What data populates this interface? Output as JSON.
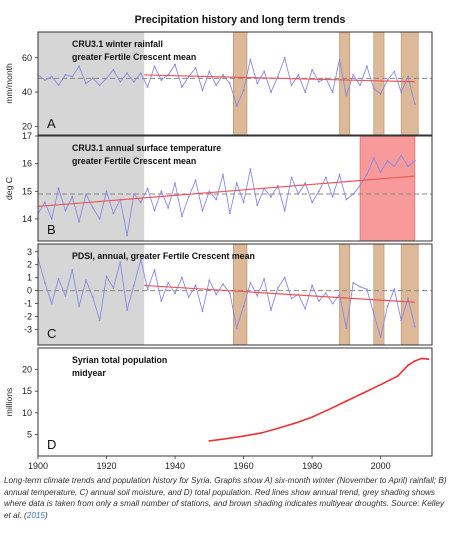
{
  "figure": {
    "title": "Precipitation history and long term trends"
  },
  "caption": {
    "text": "Long-term climate trends and population history for Syria. Graphs show A) six-month winter (November to April) rainfall; B) annual temperature, C) annual soil moisture, and D) total population. Red lines show annual trend, grey shading shows where data is taken from only a small number of stations, and brown shading indicates multiyear droughts. Source: Kelley et al. (",
    "link": "2015",
    "end": ")"
  },
  "colors": {
    "data_line": "#8a8ae8",
    "trend": "#ee5555",
    "population": "#ee3333",
    "sparse_shading": "#d6d6d6",
    "drought_shading": "#dcb999",
    "warm_shading": "#f89a9a"
  },
  "x_axis": {
    "range": [
      1900,
      2015
    ],
    "tick_labels": [
      "1900",
      "1920",
      "1940",
      "1960",
      "1980",
      "2000"
    ]
  },
  "chart_data": [
    {
      "type": "line",
      "panel_letter": "A",
      "legend_lines": [
        "CRU3.1 winter rainfall",
        "greater Fertile Crescent mean"
      ],
      "ylabel": "mm/month",
      "ylim": [
        15,
        75
      ],
      "yticks": [
        20,
        40,
        60
      ],
      "dashed_mean": 48,
      "sparse_data_years": [
        1900,
        1931
      ],
      "drought_periods": [
        [
          1957,
          1961
        ],
        [
          1988,
          1991
        ],
        [
          1998,
          2001
        ],
        [
          2006,
          2011
        ]
      ],
      "trend": [
        [
          1931,
          50
        ],
        [
          2010,
          46
        ]
      ],
      "series": [
        {
          "x": [
            1900,
            1902,
            1904,
            1906,
            1908,
            1910,
            1912,
            1914,
            1916,
            1918,
            1920,
            1922,
            1924,
            1926,
            1928,
            1930,
            1932,
            1934,
            1936,
            1938,
            1940,
            1942,
            1944,
            1946,
            1948,
            1950,
            1952,
            1954,
            1956,
            1958,
            1960,
            1962,
            1964,
            1966,
            1968,
            1970,
            1972,
            1974,
            1976,
            1978,
            1980,
            1982,
            1984,
            1986,
            1988,
            1990,
            1992,
            1994,
            1996,
            1998,
            2000,
            2002,
            2004,
            2006,
            2008,
            2010
          ],
          "y": [
            50,
            47,
            49,
            44,
            50,
            49,
            55,
            45,
            48,
            44,
            48,
            53,
            46,
            51,
            46,
            51,
            43,
            55,
            47,
            50,
            56,
            43,
            49,
            54,
            41,
            52,
            44,
            50,
            45,
            32,
            41,
            59,
            45,
            52,
            40,
            49,
            60,
            44,
            50,
            40,
            53,
            46,
            48,
            40,
            59,
            38,
            50,
            44,
            55,
            42,
            39,
            47,
            52,
            40,
            49,
            33
          ]
        }
      ]
    },
    {
      "type": "line",
      "panel_letter": "B",
      "legend_lines": [
        "CRU3.1 annual surface temperature",
        "greater Fertile Crescent mean"
      ],
      "ylabel": "deg C",
      "ylim": [
        13.2,
        17
      ],
      "yticks": [
        14,
        15,
        16,
        17
      ],
      "dashed_mean": 14.9,
      "sparse_data_years": [
        1900,
        1931
      ],
      "warm_period": [
        1994,
        2010
      ],
      "trend": [
        [
          1900,
          14.45
        ],
        [
          2010,
          15.55
        ]
      ],
      "series": [
        {
          "x": [
            1900,
            1902,
            1904,
            1906,
            1908,
            1910,
            1912,
            1914,
            1916,
            1918,
            1920,
            1922,
            1924,
            1926,
            1928,
            1930,
            1932,
            1934,
            1936,
            1938,
            1940,
            1942,
            1944,
            1946,
            1948,
            1950,
            1952,
            1954,
            1956,
            1958,
            1960,
            1962,
            1964,
            1966,
            1968,
            1970,
            1972,
            1974,
            1976,
            1978,
            1980,
            1982,
            1984,
            1986,
            1988,
            1990,
            1992,
            1994,
            1996,
            1998,
            2000,
            2002,
            2004,
            2006,
            2008,
            2010
          ],
          "y": [
            14.2,
            14.6,
            14.0,
            15.1,
            14.3,
            14.8,
            13.9,
            14.9,
            14.4,
            14.0,
            15.0,
            14.2,
            14.7,
            13.4,
            14.9,
            14.6,
            15.1,
            14.3,
            15.0,
            14.4,
            15.3,
            14.1,
            14.8,
            15.4,
            14.3,
            15.0,
            14.7,
            15.6,
            14.2,
            15.3,
            14.6,
            15.8,
            14.5,
            15.1,
            14.8,
            15.2,
            14.3,
            15.5,
            14.9,
            15.3,
            14.6,
            15.0,
            15.5,
            14.8,
            15.6,
            14.7,
            14.9,
            15.2,
            15.6,
            16.2,
            15.7,
            16.1,
            15.9,
            16.3,
            15.9,
            16.1
          ]
        }
      ]
    },
    {
      "type": "line",
      "panel_letter": "C",
      "legend_lines": [
        "PDSI, annual, greater Fertile Crescent mean"
      ],
      "ylim": [
        -4.2,
        3.6
      ],
      "yticks": [
        -3,
        -2,
        -1,
        0,
        1,
        2,
        3
      ],
      "dashed_mean": 0,
      "sparse_data_years": [
        1900,
        1931
      ],
      "drought_periods": [
        [
          1957,
          1961
        ],
        [
          1988,
          1991
        ],
        [
          1998,
          2001
        ],
        [
          2006,
          2011
        ]
      ],
      "trend": [
        [
          1931,
          0.4
        ],
        [
          2010,
          -0.9
        ]
      ],
      "series": [
        {
          "x": [
            1900,
            1902,
            1904,
            1906,
            1908,
            1910,
            1912,
            1914,
            1916,
            1918,
            1920,
            1922,
            1924,
            1926,
            1928,
            1930,
            1932,
            1934,
            1936,
            1938,
            1940,
            1942,
            1944,
            1946,
            1948,
            1950,
            1952,
            1954,
            1956,
            1958,
            1960,
            1962,
            1964,
            1966,
            1968,
            1970,
            1972,
            1974,
            1976,
            1978,
            1980,
            1982,
            1984,
            1986,
            1988,
            1990,
            1992,
            1994,
            1996,
            1998,
            2000,
            2002,
            2004,
            2006,
            2008,
            2010
          ],
          "y": [
            2.5,
            0.6,
            -1.0,
            0.9,
            -0.4,
            1.6,
            -1.2,
            0.8,
            -0.5,
            -2.3,
            1.1,
            0.2,
            2.2,
            -1.5,
            0.4,
            2.4,
            0.1,
            1.6,
            -0.8,
            0.6,
            -0.2,
            1.0,
            -0.5,
            0.4,
            -1.6,
            0.8,
            -0.3,
            0.5,
            -0.2,
            -2.9,
            -1.2,
            0.6,
            -0.4,
            0.9,
            -1.5,
            0.2,
            1.0,
            -0.6,
            -0.3,
            -1.4,
            0.4,
            -0.8,
            -0.2,
            -1.0,
            -0.3,
            -2.9,
            0.6,
            0.3,
            0.1,
            -1.8,
            -3.6,
            -1.2,
            0.1,
            -2.3,
            -0.6,
            -2.8
          ]
        }
      ]
    },
    {
      "type": "line",
      "panel_letter": "D",
      "legend_lines": [
        "Syrian total population",
        "midyear"
      ],
      "ylabel": "millions",
      "ylim": [
        0,
        25
      ],
      "yticks": [
        5,
        10,
        15,
        20
      ],
      "series": [
        {
          "x": [
            1950,
            1955,
            1960,
            1965,
            1970,
            1975,
            1980,
            1985,
            1990,
            1995,
            2000,
            2005,
            2008,
            2010,
            2012,
            2014
          ],
          "y": [
            3.5,
            4.0,
            4.6,
            5.3,
            6.4,
            7.6,
            9.0,
            10.8,
            12.7,
            14.6,
            16.5,
            18.5,
            21.0,
            22.0,
            22.6,
            22.4
          ]
        }
      ]
    }
  ]
}
